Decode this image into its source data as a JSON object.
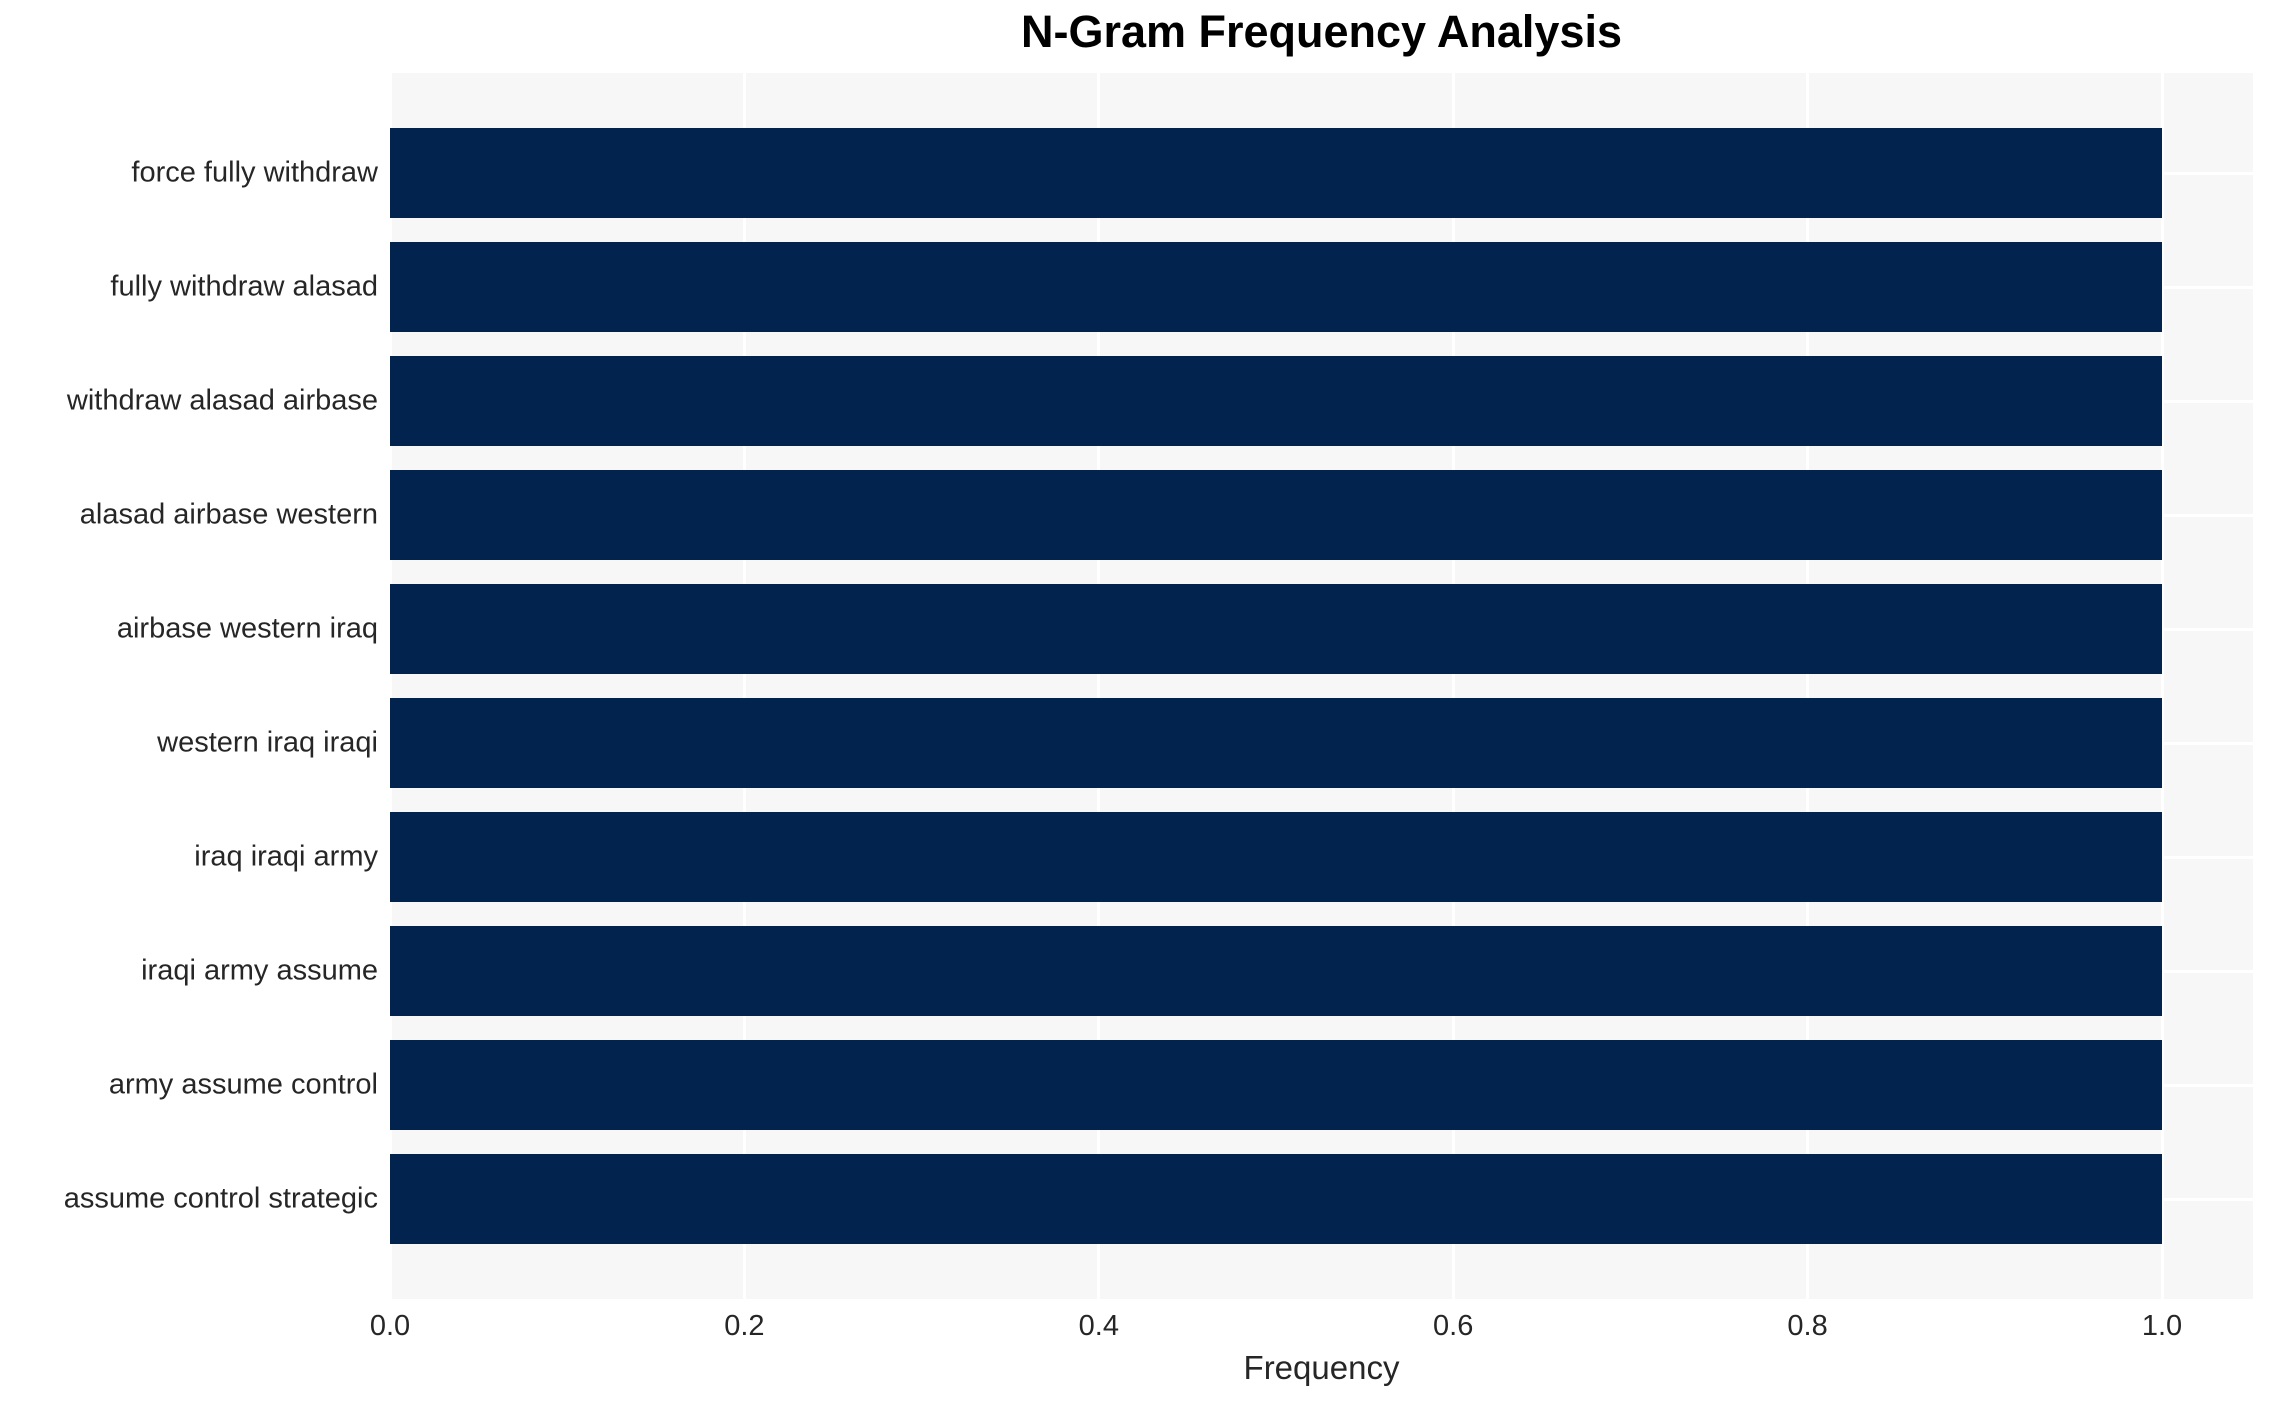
{
  "chart_data": {
    "type": "bar",
    "orientation": "horizontal",
    "title": "N-Gram Frequency Analysis",
    "xlabel": "Frequency",
    "ylabel": "",
    "categories": [
      "force fully withdraw",
      "fully withdraw alasad",
      "withdraw alasad airbase",
      "alasad airbase western",
      "airbase western iraq",
      "western iraq iraqi",
      "iraq iraqi army",
      "iraqi army assume",
      "army assume control",
      "assume control strategic"
    ],
    "values": [
      1.0,
      1.0,
      1.0,
      1.0,
      1.0,
      1.0,
      1.0,
      1.0,
      1.0,
      1.0
    ],
    "xlim": [
      0.0,
      1.05
    ],
    "x_ticks": [
      {
        "value": 0.0,
        "label": "0.0"
      },
      {
        "value": 0.2,
        "label": "0.2"
      },
      {
        "value": 0.4,
        "label": "0.4"
      },
      {
        "value": 0.6,
        "label": "0.6"
      },
      {
        "value": 0.8,
        "label": "0.8"
      },
      {
        "value": 1.0,
        "label": "1.0"
      }
    ],
    "grid": true,
    "legend": null,
    "colors": {
      "bar": "#02234d",
      "plot_bg": "#f7f7f7",
      "grid_line": "#ffffff",
      "tick_text": "#262626",
      "title_text": "#000000",
      "figure_bg": "#ffffff"
    }
  }
}
